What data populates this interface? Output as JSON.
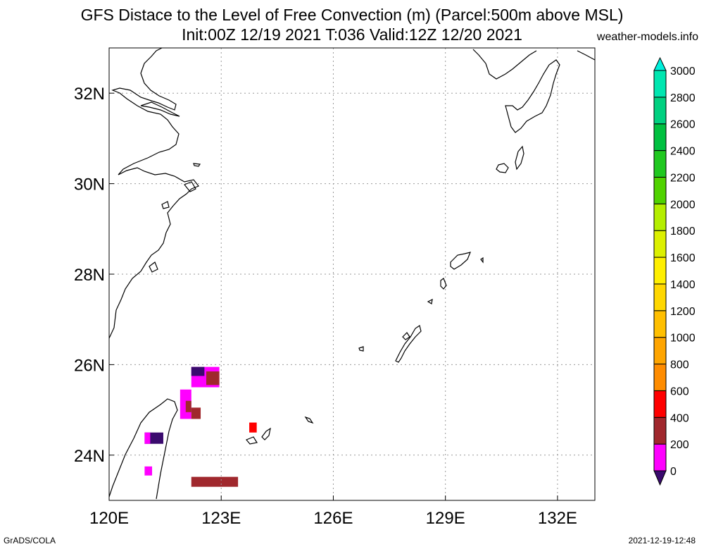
{
  "title": {
    "line1": "GFS Distace to the Level of Free Convection (m) (Parcel:500m above MSL)",
    "line2": "Init:00Z 12/19 2021 T:036 Valid:12Z 12/20 2021",
    "site": "weather-models.info"
  },
  "footer": {
    "left": "GrADS/COLA",
    "right": "2021-12-19-12:48"
  },
  "map": {
    "lon_range": [
      120,
      133
    ],
    "lat_range": [
      23,
      33
    ],
    "lon_ticks": [
      {
        "value": 120,
        "label": "120E"
      },
      {
        "value": 123,
        "label": "123E"
      },
      {
        "value": 126,
        "label": "126E"
      },
      {
        "value": 129,
        "label": "129E"
      },
      {
        "value": 132,
        "label": "132E"
      }
    ],
    "lat_ticks": [
      {
        "value": 24,
        "label": "24N"
      },
      {
        "value": 26,
        "label": "26N"
      },
      {
        "value": 28,
        "label": "28N"
      },
      {
        "value": 30,
        "label": "30N"
      },
      {
        "value": 32,
        "label": "32N"
      }
    ],
    "gridlines": "dotted",
    "shaded_cells": [
      {
        "lon": [
          122.2,
          122.95
        ],
        "lat": [
          25.5,
          25.95
        ],
        "color": "#ff00ff"
      },
      {
        "lon": [
          122.6,
          122.95
        ],
        "lat": [
          25.55,
          25.85
        ],
        "color": "#a0282d"
      },
      {
        "lon": [
          122.2,
          122.55
        ],
        "lat": [
          25.75,
          25.95
        ],
        "color": "#3a0a6e"
      },
      {
        "lon": [
          121.9,
          122.2
        ],
        "lat": [
          24.8,
          25.45
        ],
        "color": "#ff00ff"
      },
      {
        "lon": [
          122.05,
          122.2
        ],
        "lat": [
          24.95,
          25.2
        ],
        "color": "#a0282d"
      },
      {
        "lon": [
          122.2,
          122.45
        ],
        "lat": [
          24.8,
          25.05
        ],
        "color": "#a0282d"
      },
      {
        "lon": [
          120.95,
          121.45
        ],
        "lat": [
          24.25,
          24.5
        ],
        "color": "#3a0a6e"
      },
      {
        "lon": [
          120.95,
          121.1
        ],
        "lat": [
          24.25,
          24.5
        ],
        "color": "#ff00ff"
      },
      {
        "lon": [
          123.75,
          123.95
        ],
        "lat": [
          24.5,
          24.72
        ],
        "color": "#ff0000"
      },
      {
        "lon": [
          120.95,
          121.15
        ],
        "lat": [
          23.55,
          23.75
        ],
        "color": "#ff00ff"
      },
      {
        "lon": [
          122.2,
          123.45
        ],
        "lat": [
          23.3,
          23.52
        ],
        "color": "#a0282d"
      }
    ]
  },
  "colorbar": {
    "levels": [
      0,
      200,
      400,
      600,
      800,
      1000,
      1200,
      1400,
      1600,
      1800,
      2000,
      2200,
      2400,
      2600,
      2800,
      3000
    ],
    "colors": [
      "#3a0a6e",
      "#ff00ff",
      "#a0282d",
      "#ff0000",
      "#ff8c00",
      "#ffa500",
      "#ffbf00",
      "#ffd700",
      "#ffef00",
      "#dcf000",
      "#b4ee00",
      "#50d200",
      "#20c820",
      "#00c040",
      "#00d080",
      "#00e6b0",
      "#00f0dc"
    ]
  }
}
